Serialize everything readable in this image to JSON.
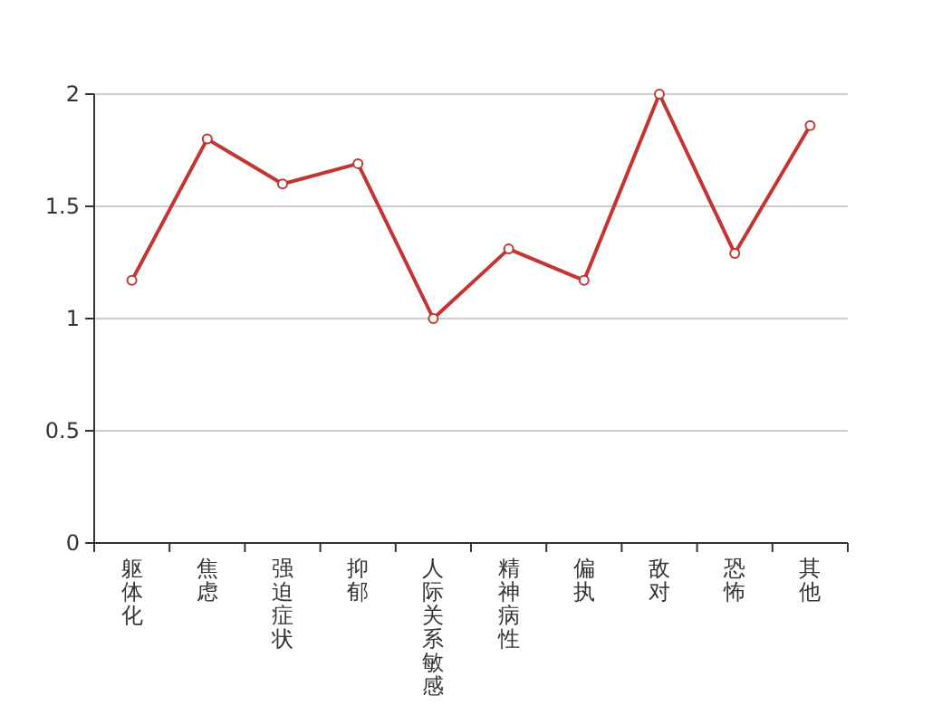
{
  "chart_data": {
    "type": "line",
    "categories": [
      "躯体化",
      "焦虑",
      "强迫症状",
      "抑郁",
      "人际关系敏感",
      "精神病性",
      "偏执",
      "敌对",
      "恐怖",
      "其他"
    ],
    "series": [
      {
        "color": "#c23531",
        "values": [
          1.17,
          1.8,
          1.6,
          1.69,
          1.0,
          1.31,
          1.17,
          2.0,
          1.29,
          1.86
        ]
      }
    ],
    "ylim": [
      0,
      2
    ],
    "yticks": [
      0,
      0.5,
      1,
      1.5,
      2
    ],
    "grid": "y",
    "marker": "circle",
    "line_style": "solid"
  }
}
